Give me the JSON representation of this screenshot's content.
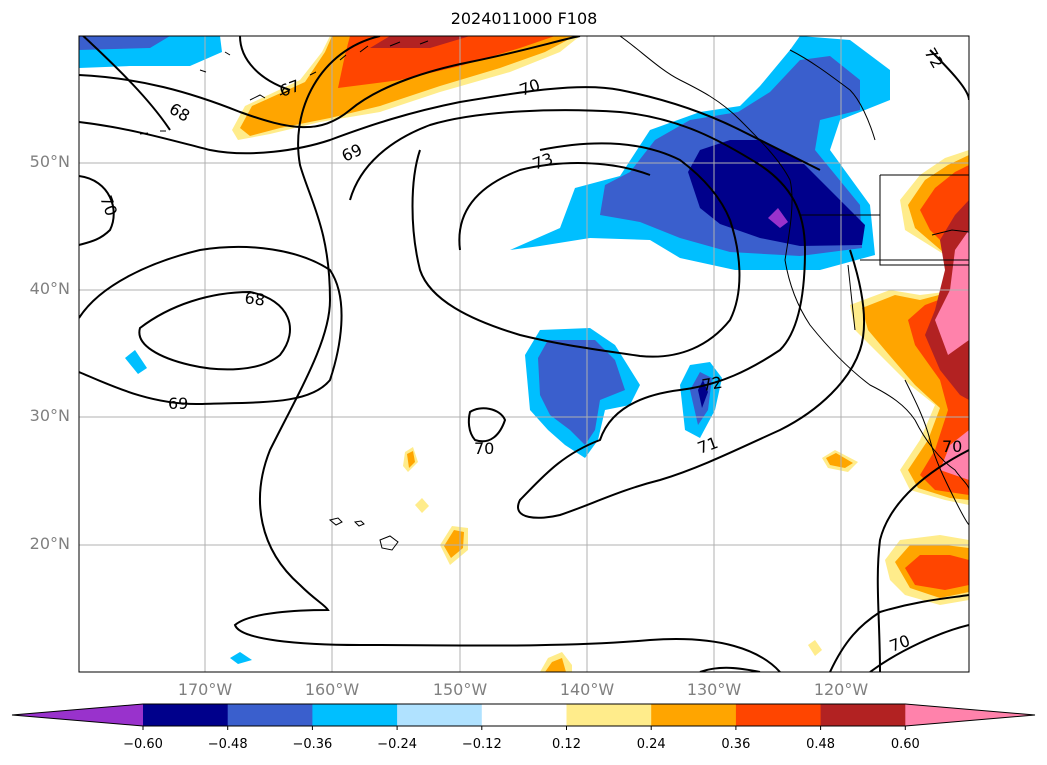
{
  "title": "2024011000 F108",
  "lat_labels": [
    "50°N",
    "40°N",
    "30°N",
    "20°N"
  ],
  "lon_labels": [
    "170°W",
    "160°W",
    "150°W",
    "140°W",
    "130°W",
    "120°W"
  ],
  "contour_labels": [
    "68",
    "67",
    "70",
    "69",
    "73",
    "70",
    "68",
    "69",
    "70",
    "72",
    "71",
    "70",
    "70",
    "72"
  ],
  "colorbar": {
    "ticks": [
      "−0.60",
      "−0.48",
      "−0.36",
      "−0.24",
      "−0.12",
      "0.12",
      "0.24",
      "0.36",
      "0.48",
      "0.60"
    ],
    "colors": [
      "#9932cc",
      "#00008b",
      "#3a5fcd",
      "#00bfff",
      "#b0e2ff",
      "#ffffff",
      "#ffec8b",
      "#ffa500",
      "#ff4500",
      "#b22222",
      "#ff82ab"
    ]
  },
  "colors": {
    "grid": "#b0b0b0",
    "contour": "#000000",
    "coast": "#000000"
  }
}
